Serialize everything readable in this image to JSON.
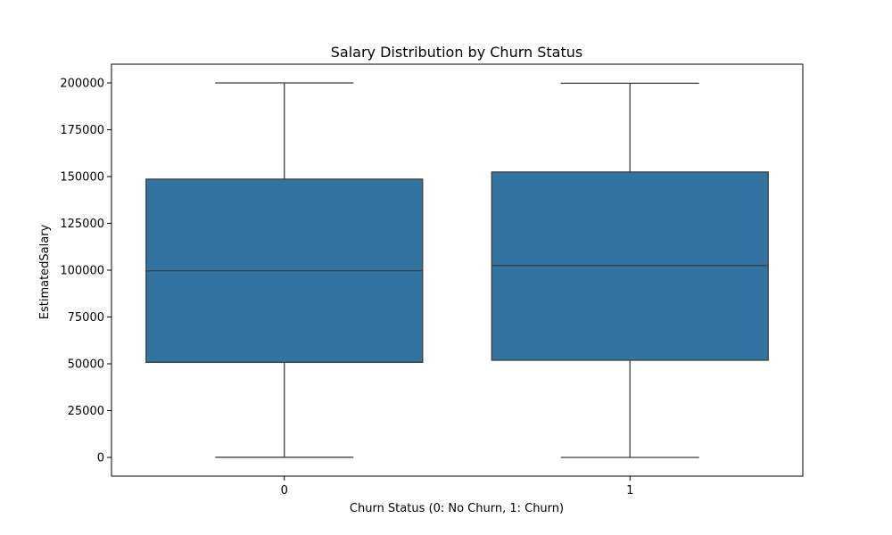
{
  "chart_data": {
    "type": "box",
    "title": "Salary Distribution by Churn Status",
    "xlabel": "Churn Status (0: No Churn, 1: Churn)",
    "ylabel": "EstimatedSalary",
    "categories": [
      "0",
      "1"
    ],
    "ylim": [
      -10000,
      210000
    ],
    "yticks": [
      0,
      25000,
      50000,
      75000,
      100000,
      125000,
      150000,
      175000,
      200000
    ],
    "ytick_labels": [
      "0",
      "25000",
      "50000",
      "75000",
      "100000",
      "125000",
      "150000",
      "175000",
      "200000"
    ],
    "grid": false,
    "box_color": "#3274a1",
    "line_color": "#3d3d3d",
    "boxes": [
      {
        "category": "0",
        "whisker_low": 90,
        "q1": 50783,
        "median": 99645,
        "q3": 148610,
        "whisker_high": 199992
      },
      {
        "category": "1",
        "whisker_low": 11.58,
        "q1": 51907,
        "median": 102460,
        "q3": 152423,
        "whisker_high": 199809
      }
    ]
  }
}
